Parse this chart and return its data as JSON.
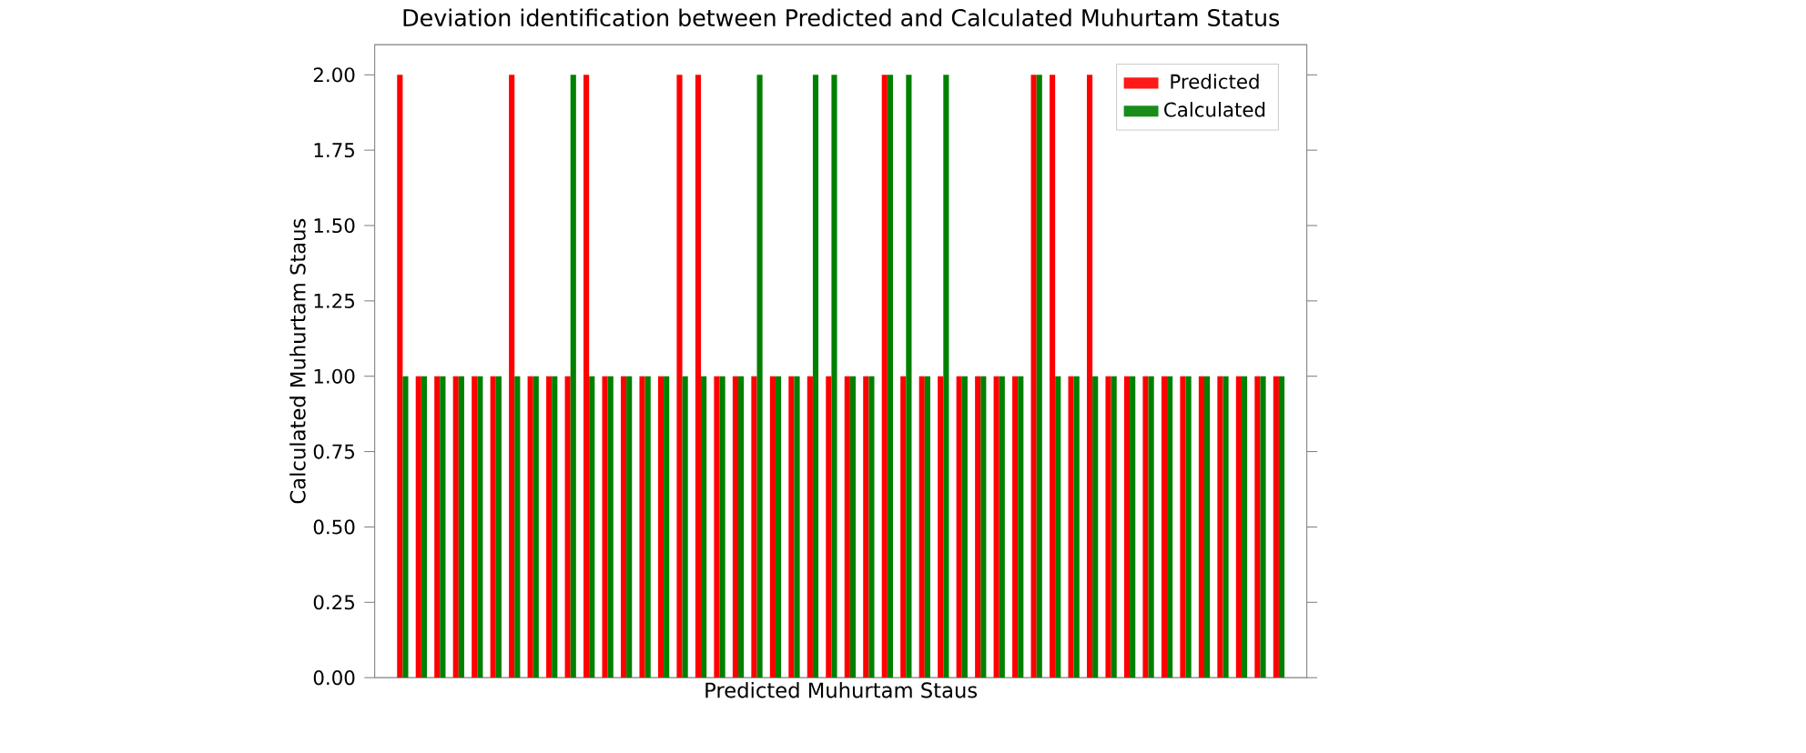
{
  "chart_data": {
    "type": "bar",
    "title": "Deviation identification between Predicted and Calculated Muhurtam Status",
    "xlabel": "Predicted Muhurtam Staus",
    "ylabel": "Calculated Muhurtam Staus",
    "categories": [
      null,
      null,
      null,
      null,
      null,
      null,
      null,
      null,
      null,
      null,
      null,
      null,
      null,
      null,
      null,
      null,
      null,
      null,
      null,
      null,
      null,
      null,
      null,
      null,
      null,
      null,
      null,
      null,
      null,
      null,
      null,
      null,
      null,
      null,
      null,
      null,
      null,
      null,
      null,
      null,
      null,
      null,
      null,
      null,
      null,
      null,
      null,
      null
    ],
    "series": [
      {
        "name": "Predicted",
        "color": "#ff0000",
        "values": [
          2,
          1,
          1,
          1,
          1,
          1,
          2,
          1,
          1,
          1,
          2,
          1,
          1,
          1,
          1,
          2,
          2,
          1,
          1,
          1,
          1,
          1,
          1,
          1,
          1,
          1,
          2,
          1,
          1,
          1,
          1,
          1,
          1,
          1,
          2,
          2,
          1,
          2,
          1,
          1,
          1,
          1,
          1,
          1,
          1,
          1,
          1,
          1
        ]
      },
      {
        "name": "Calculated",
        "color": "#008000",
        "values": [
          1,
          1,
          1,
          1,
          1,
          1,
          1,
          1,
          1,
          2,
          1,
          1,
          1,
          1,
          1,
          1,
          1,
          1,
          1,
          2,
          1,
          1,
          2,
          2,
          1,
          1,
          2,
          2,
          1,
          2,
          1,
          1,
          1,
          1,
          2,
          1,
          1,
          1,
          1,
          1,
          1,
          1,
          1,
          1,
          1,
          1,
          1,
          1
        ]
      }
    ],
    "ylim": [
      0,
      2.1
    ],
    "yticks": [
      {
        "value": 0,
        "label": "0.00"
      },
      {
        "value": 0.25,
        "label": "0.25"
      },
      {
        "value": 0.5,
        "label": "0.50"
      },
      {
        "value": 0.75,
        "label": "0.75"
      },
      {
        "value": 1,
        "label": "1.00"
      },
      {
        "value": 1.25,
        "label": "1.25"
      },
      {
        "value": 1.5,
        "label": "1.50"
      },
      {
        "value": 1.75,
        "label": "1.75"
      },
      {
        "value": 2,
        "label": "2.00"
      }
    ],
    "legend": "top right",
    "tick_labels": "y"
  }
}
